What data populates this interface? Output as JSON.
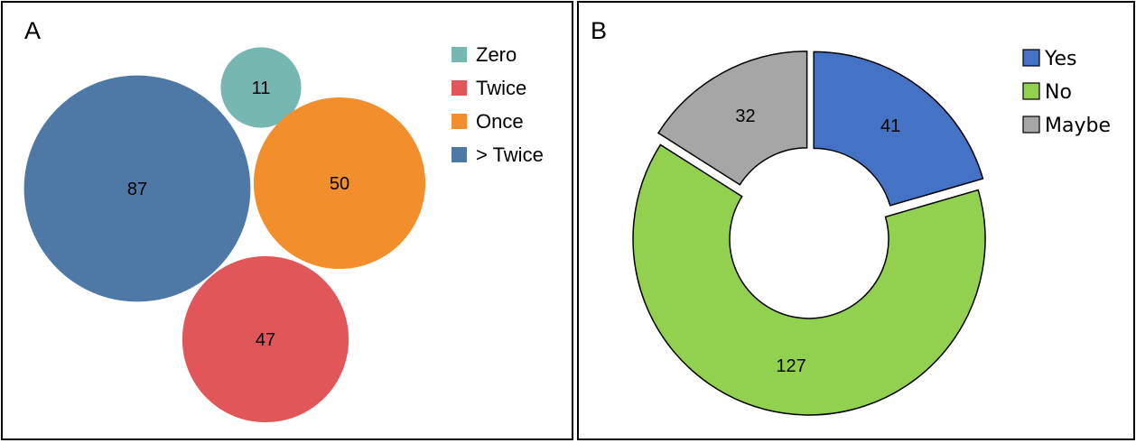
{
  "chart_data": [
    {
      "type": "bubble",
      "title": "",
      "panel_label": "A",
      "categories": [
        "Zero",
        "Twice",
        "Once",
        "> Twice"
      ],
      "values": [
        11,
        47,
        50,
        87
      ],
      "colors": [
        "#76b7b2",
        "#e15759",
        "#f28e2b",
        "#4e79a7"
      ],
      "legend": {
        "placement": "top-right",
        "entries": [
          "Zero",
          "Twice",
          "Once",
          "> Twice"
        ]
      }
    },
    {
      "type": "pie",
      "subtype": "donut",
      "title": "",
      "panel_label": "B",
      "categories": [
        "Yes",
        "No",
        "Maybe"
      ],
      "values": [
        41,
        127,
        32
      ],
      "colors": [
        "#4472c4",
        "#92d050",
        "#a6a6a6"
      ],
      "legend": {
        "placement": "top-right",
        "entries": [
          "Yes",
          "No",
          "Maybe"
        ]
      }
    }
  ]
}
